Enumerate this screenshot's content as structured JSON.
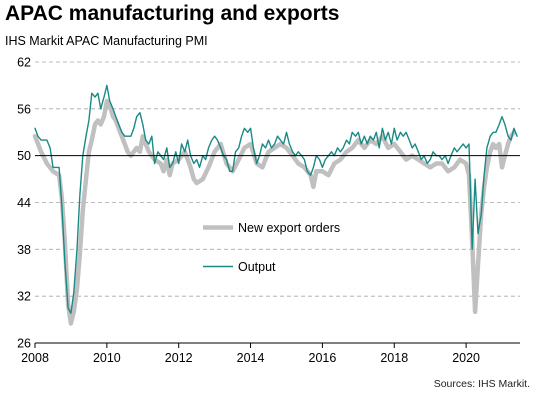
{
  "header": {
    "title": "APAC manufacturing and exports",
    "subtitle": "IHS Markit APAC Manufacturing PMI"
  },
  "footer": {
    "source": "Sources: IHS Markit."
  },
  "colors": {
    "new_export_orders": "#c0c0c0",
    "output": "#1a8a85",
    "baseline": "#000000",
    "grid": "#a8a8a8"
  },
  "chart_data": {
    "type": "line",
    "title": "APAC manufacturing and exports",
    "subtitle": "IHS Markit APAC Manufacturing PMI",
    "ylim": [
      26,
      62
    ],
    "yticks": [
      26,
      32,
      38,
      44,
      50,
      56,
      62
    ],
    "xlim": [
      2008,
      2021.5
    ],
    "xticks": [
      2008,
      2010,
      2012,
      2014,
      2016,
      2018,
      2020
    ],
    "baseline": 50,
    "grid": "horizontal-dashed",
    "legend_position": "center-left",
    "series": [
      {
        "name": "New export orders",
        "color": "#c0c0c0",
        "points": [
          [
            2008.0,
            52.5
          ],
          [
            2008.17,
            50.5
          ],
          [
            2008.33,
            49.0
          ],
          [
            2008.5,
            48.0
          ],
          [
            2008.67,
            47.5
          ],
          [
            2008.75,
            44.5
          ],
          [
            2008.83,
            39.0
          ],
          [
            2008.92,
            31.0
          ],
          [
            2009.0,
            28.5
          ],
          [
            2009.08,
            30.0
          ],
          [
            2009.17,
            33.0
          ],
          [
            2009.25,
            37.5
          ],
          [
            2009.33,
            43.0
          ],
          [
            2009.42,
            47.0
          ],
          [
            2009.5,
            50.5
          ],
          [
            2009.58,
            52.0
          ],
          [
            2009.67,
            54.0
          ],
          [
            2009.75,
            54.5
          ],
          [
            2009.83,
            54.0
          ],
          [
            2009.92,
            55.0
          ],
          [
            2010.0,
            57.0
          ],
          [
            2010.08,
            56.5
          ],
          [
            2010.17,
            55.0
          ],
          [
            2010.25,
            54.5
          ],
          [
            2010.33,
            53.5
          ],
          [
            2010.5,
            51.5
          ],
          [
            2010.58,
            50.5
          ],
          [
            2010.67,
            50.0
          ],
          [
            2010.83,
            51.0
          ],
          [
            2010.92,
            50.5
          ],
          [
            2011.0,
            52.5
          ],
          [
            2011.08,
            51.5
          ],
          [
            2011.17,
            50.5
          ],
          [
            2011.33,
            49.5
          ],
          [
            2011.5,
            49.0
          ],
          [
            2011.58,
            48.0
          ],
          [
            2011.67,
            49.5
          ],
          [
            2011.75,
            47.5
          ],
          [
            2011.83,
            49.0
          ],
          [
            2012.0,
            49.5
          ],
          [
            2012.17,
            50.5
          ],
          [
            2012.33,
            48.5
          ],
          [
            2012.42,
            47.0
          ],
          [
            2012.5,
            46.5
          ],
          [
            2012.67,
            47.0
          ],
          [
            2012.83,
            48.5
          ],
          [
            2013.0,
            50.5
          ],
          [
            2013.17,
            51.5
          ],
          [
            2013.33,
            49.0
          ],
          [
            2013.5,
            48.0
          ],
          [
            2013.67,
            49.5
          ],
          [
            2013.83,
            51.0
          ],
          [
            2014.0,
            51.5
          ],
          [
            2014.17,
            49.0
          ],
          [
            2014.33,
            48.5
          ],
          [
            2014.5,
            50.5
          ],
          [
            2014.67,
            51.0
          ],
          [
            2014.83,
            51.5
          ],
          [
            2015.0,
            51.0
          ],
          [
            2015.17,
            50.0
          ],
          [
            2015.33,
            49.0
          ],
          [
            2015.5,
            48.5
          ],
          [
            2015.67,
            47.5
          ],
          [
            2015.75,
            46.0
          ],
          [
            2015.83,
            48.0
          ],
          [
            2016.0,
            48.0
          ],
          [
            2016.17,
            47.5
          ],
          [
            2016.33,
            49.0
          ],
          [
            2016.5,
            49.5
          ],
          [
            2016.67,
            50.5
          ],
          [
            2016.83,
            51.0
          ],
          [
            2017.0,
            52.0
          ],
          [
            2017.17,
            51.0
          ],
          [
            2017.33,
            52.0
          ],
          [
            2017.5,
            51.5
          ],
          [
            2017.67,
            52.5
          ],
          [
            2017.83,
            51.0
          ],
          [
            2018.0,
            51.5
          ],
          [
            2018.17,
            50.5
          ],
          [
            2018.33,
            49.5
          ],
          [
            2018.5,
            50.0
          ],
          [
            2018.67,
            49.5
          ],
          [
            2018.83,
            49.0
          ],
          [
            2019.0,
            48.5
          ],
          [
            2019.17,
            49.0
          ],
          [
            2019.33,
            49.0
          ],
          [
            2019.5,
            48.0
          ],
          [
            2019.67,
            48.5
          ],
          [
            2019.83,
            49.5
          ],
          [
            2020.0,
            49.0
          ],
          [
            2020.08,
            47.5
          ],
          [
            2020.17,
            39.0
          ],
          [
            2020.25,
            30.0
          ],
          [
            2020.33,
            36.0
          ],
          [
            2020.42,
            42.5
          ],
          [
            2020.5,
            46.0
          ],
          [
            2020.58,
            48.5
          ],
          [
            2020.67,
            50.5
          ],
          [
            2020.75,
            51.5
          ],
          [
            2020.83,
            51.0
          ],
          [
            2020.92,
            51.5
          ],
          [
            2021.0,
            48.5
          ],
          [
            2021.08,
            50.0
          ],
          [
            2021.17,
            51.5
          ],
          [
            2021.25,
            52.5
          ],
          [
            2021.33,
            53.0
          ]
        ]
      },
      {
        "name": "Output",
        "color": "#1a8a85",
        "points": [
          [
            2008.0,
            53.5
          ],
          [
            2008.08,
            52.5
          ],
          [
            2008.17,
            52.0
          ],
          [
            2008.33,
            52.0
          ],
          [
            2008.42,
            51.0
          ],
          [
            2008.5,
            48.5
          ],
          [
            2008.58,
            48.5
          ],
          [
            2008.67,
            48.5
          ],
          [
            2008.75,
            43.5
          ],
          [
            2008.83,
            36.5
          ],
          [
            2008.92,
            30.5
          ],
          [
            2009.0,
            29.8
          ],
          [
            2009.08,
            32.5
          ],
          [
            2009.17,
            38.0
          ],
          [
            2009.25,
            45.0
          ],
          [
            2009.33,
            50.0
          ],
          [
            2009.42,
            52.5
          ],
          [
            2009.5,
            54.5
          ],
          [
            2009.58,
            58.0
          ],
          [
            2009.67,
            57.5
          ],
          [
            2009.75,
            58.0
          ],
          [
            2009.83,
            56.0
          ],
          [
            2009.92,
            57.5
          ],
          [
            2010.0,
            59.0
          ],
          [
            2010.08,
            57.0
          ],
          [
            2010.17,
            56.0
          ],
          [
            2010.25,
            55.0
          ],
          [
            2010.33,
            54.0
          ],
          [
            2010.42,
            53.0
          ],
          [
            2010.5,
            52.5
          ],
          [
            2010.58,
            52.5
          ],
          [
            2010.67,
            52.5
          ],
          [
            2010.75,
            53.5
          ],
          [
            2010.83,
            55.0
          ],
          [
            2010.92,
            55.5
          ],
          [
            2011.0,
            54.0
          ],
          [
            2011.08,
            52.0
          ],
          [
            2011.17,
            51.5
          ],
          [
            2011.25,
            52.5
          ],
          [
            2011.33,
            49.0
          ],
          [
            2011.42,
            50.5
          ],
          [
            2011.5,
            50.0
          ],
          [
            2011.58,
            49.5
          ],
          [
            2011.67,
            51.0
          ],
          [
            2011.75,
            48.5
          ],
          [
            2011.83,
            49.0
          ],
          [
            2011.92,
            50.5
          ],
          [
            2012.0,
            49.0
          ],
          [
            2012.08,
            51.5
          ],
          [
            2012.17,
            50.5
          ],
          [
            2012.25,
            52.0
          ],
          [
            2012.33,
            50.0
          ],
          [
            2012.42,
            49.0
          ],
          [
            2012.5,
            49.5
          ],
          [
            2012.58,
            48.5
          ],
          [
            2012.67,
            50.0
          ],
          [
            2012.75,
            49.5
          ],
          [
            2012.83,
            51.0
          ],
          [
            2012.92,
            52.0
          ],
          [
            2013.0,
            52.5
          ],
          [
            2013.08,
            52.0
          ],
          [
            2013.17,
            51.0
          ],
          [
            2013.25,
            50.0
          ],
          [
            2013.33,
            49.5
          ],
          [
            2013.42,
            48.0
          ],
          [
            2013.5,
            48.0
          ],
          [
            2013.58,
            50.5
          ],
          [
            2013.67,
            51.0
          ],
          [
            2013.75,
            52.5
          ],
          [
            2013.83,
            53.5
          ],
          [
            2013.92,
            53.0
          ],
          [
            2014.0,
            53.5
          ],
          [
            2014.08,
            51.0
          ],
          [
            2014.17,
            49.0
          ],
          [
            2014.25,
            50.0
          ],
          [
            2014.33,
            51.5
          ],
          [
            2014.42,
            51.0
          ],
          [
            2014.5,
            52.0
          ],
          [
            2014.58,
            51.0
          ],
          [
            2014.67,
            51.5
          ],
          [
            2014.75,
            52.5
          ],
          [
            2014.83,
            52.0
          ],
          [
            2014.92,
            51.5
          ],
          [
            2015.0,
            53.0
          ],
          [
            2015.08,
            51.5
          ],
          [
            2015.17,
            50.5
          ],
          [
            2015.25,
            50.0
          ],
          [
            2015.33,
            50.5
          ],
          [
            2015.42,
            50.0
          ],
          [
            2015.5,
            49.5
          ],
          [
            2015.58,
            48.0
          ],
          [
            2015.67,
            47.5
          ],
          [
            2015.75,
            48.5
          ],
          [
            2015.83,
            50.0
          ],
          [
            2015.92,
            49.5
          ],
          [
            2016.0,
            48.5
          ],
          [
            2016.08,
            49.5
          ],
          [
            2016.17,
            50.0
          ],
          [
            2016.25,
            50.5
          ],
          [
            2016.33,
            50.0
          ],
          [
            2016.42,
            51.0
          ],
          [
            2016.5,
            50.5
          ],
          [
            2016.58,
            51.0
          ],
          [
            2016.67,
            52.0
          ],
          [
            2016.75,
            51.5
          ],
          [
            2016.83,
            53.0
          ],
          [
            2016.92,
            52.5
          ],
          [
            2017.0,
            53.0
          ],
          [
            2017.08,
            51.5
          ],
          [
            2017.17,
            52.5
          ],
          [
            2017.25,
            51.5
          ],
          [
            2017.33,
            52.5
          ],
          [
            2017.42,
            52.0
          ],
          [
            2017.5,
            53.0
          ],
          [
            2017.58,
            51.0
          ],
          [
            2017.67,
            53.5
          ],
          [
            2017.75,
            52.0
          ],
          [
            2017.83,
            53.0
          ],
          [
            2017.92,
            51.5
          ],
          [
            2018.0,
            53.5
          ],
          [
            2018.08,
            52.0
          ],
          [
            2018.17,
            53.0
          ],
          [
            2018.25,
            52.5
          ],
          [
            2018.33,
            53.0
          ],
          [
            2018.42,
            52.0
          ],
          [
            2018.5,
            51.0
          ],
          [
            2018.58,
            51.5
          ],
          [
            2018.67,
            50.5
          ],
          [
            2018.75,
            49.5
          ],
          [
            2018.83,
            50.0
          ],
          [
            2018.92,
            49.0
          ],
          [
            2019.0,
            49.5
          ],
          [
            2019.08,
            50.5
          ],
          [
            2019.17,
            50.0
          ],
          [
            2019.25,
            50.0
          ],
          [
            2019.33,
            49.5
          ],
          [
            2019.42,
            50.0
          ],
          [
            2019.5,
            49.0
          ],
          [
            2019.58,
            50.0
          ],
          [
            2019.67,
            51.0
          ],
          [
            2019.75,
            50.5
          ],
          [
            2019.83,
            51.0
          ],
          [
            2019.92,
            51.5
          ],
          [
            2020.0,
            51.0
          ],
          [
            2020.08,
            51.5
          ],
          [
            2020.17,
            38.0
          ],
          [
            2020.25,
            47.0
          ],
          [
            2020.33,
            40.0
          ],
          [
            2020.42,
            42.5
          ],
          [
            2020.5,
            47.5
          ],
          [
            2020.58,
            51.0
          ],
          [
            2020.67,
            52.5
          ],
          [
            2020.75,
            53.0
          ],
          [
            2020.83,
            53.0
          ],
          [
            2020.92,
            54.0
          ],
          [
            2021.0,
            55.0
          ],
          [
            2021.08,
            54.0
          ],
          [
            2021.17,
            52.5
          ],
          [
            2021.25,
            52.0
          ],
          [
            2021.33,
            53.5
          ],
          [
            2021.42,
            52.5
          ]
        ]
      }
    ]
  }
}
